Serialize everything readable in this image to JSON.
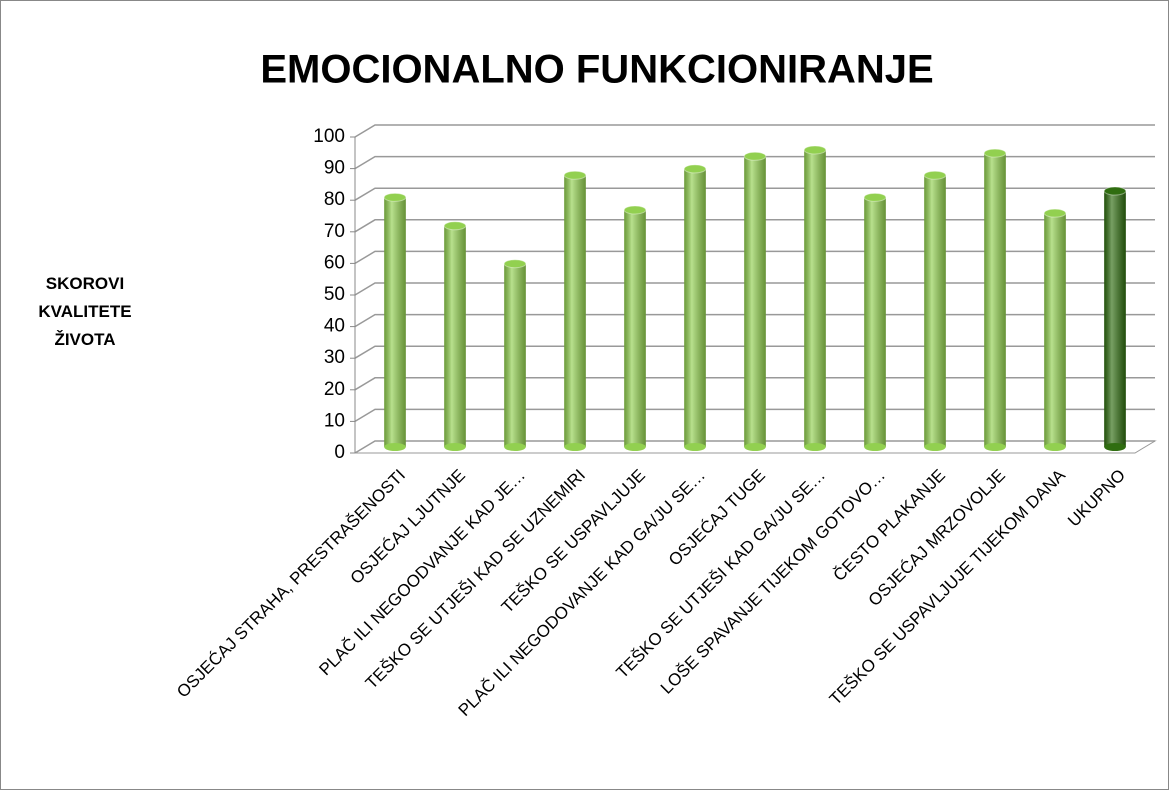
{
  "chart_data": {
    "type": "bar3d",
    "title": "EMOCIONALNO FUNKCIONIRANJE",
    "y_label": "SKOROVI KVALITETE ŽIVOTA",
    "categories": [
      "OSJEĆAJ STRAHA, PRESTRAŠENOSTI",
      "OSJEĆAJ LJUTNJE",
      "PLAČ ILI NEGOODVANJE KAD JE…",
      "TEŠKO SE UTJEŠI KAD SE UZNEMIRI",
      "TEŠKO SE USPAVLJUJE",
      "PLAČ ILI NEGODOVANJE KAD GA/JU SE…",
      "OSJEĆAJ TUGE",
      "TEŠKO SE UTJEŠI KAD GA/JU SE…",
      "LOŠE SPAVANJE TIJEKOM GOTOVO…",
      "ČESTO PLAKANJE",
      "OSJEĆAJ MRZOVOLJE",
      "TEŠKO SE USPAVLJUJE TIJEKOM DANA",
      "UKUPNO"
    ],
    "values": [
      79,
      70,
      58,
      86,
      75,
      88,
      92,
      94,
      79,
      86,
      93,
      74,
      81
    ],
    "colors": [
      "#92d050",
      "#92d050",
      "#92d050",
      "#92d050",
      "#92d050",
      "#92d050",
      "#92d050",
      "#92d050",
      "#92d050",
      "#92d050",
      "#92d050",
      "#92d050",
      "#2f6d10"
    ],
    "ylim": [
      0,
      100
    ],
    "yticks": [
      0,
      10,
      20,
      30,
      40,
      50,
      60,
      70,
      80,
      90,
      100
    ],
    "grid": true
  }
}
